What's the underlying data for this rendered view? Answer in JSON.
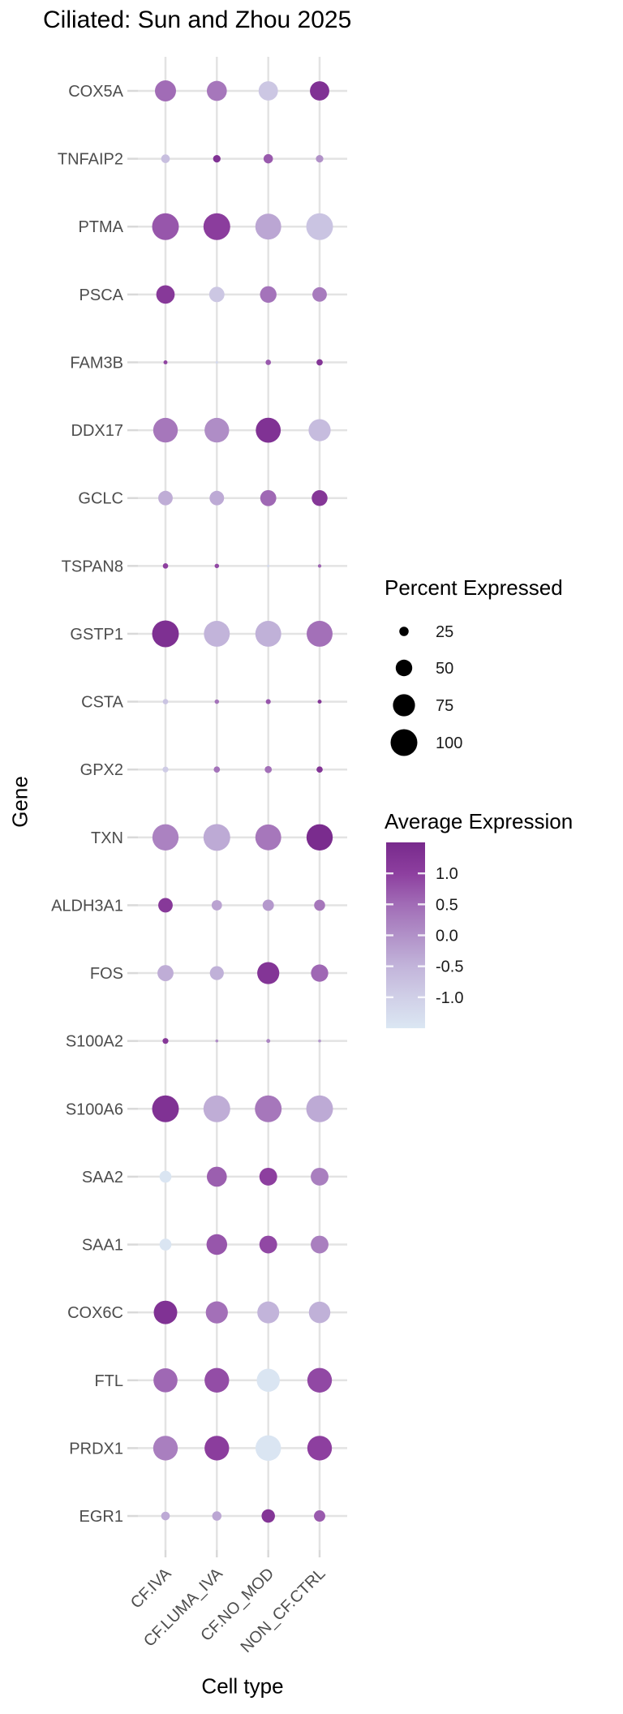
{
  "title": "Ciliated: Sun and Zhou 2025",
  "axes": {
    "x_label": "Cell type",
    "y_label": "Gene"
  },
  "legends": {
    "size": {
      "title": "Percent Expressed",
      "items": [
        "25",
        "50",
        "75",
        "100"
      ],
      "dot_color": "#000000"
    },
    "color": {
      "title": "Average Expression",
      "tick_labels": [
        "1.0",
        "0.5",
        "0.0",
        "-0.5",
        "-1.0"
      ],
      "tick_values": [
        1.0,
        0.5,
        0.0,
        -0.5,
        -1.0
      ],
      "domain": [
        -1.5,
        1.5
      ],
      "gradient_stops": [
        {
          "v": 1.5,
          "c": "#782a8c"
        },
        {
          "v": 1.0,
          "c": "#8d3f9f"
        },
        {
          "v": 0.5,
          "c": "#a16cb6"
        },
        {
          "v": 0.0,
          "c": "#b191c8"
        },
        {
          "v": -0.5,
          "c": "#c2b4da"
        },
        {
          "v": -1.0,
          "c": "#d0cfe7"
        },
        {
          "v": -1.5,
          "c": "#dbe7f3"
        }
      ]
    }
  },
  "style": {
    "grid_color": "#e3e3e3",
    "tick_color": "#d9d9d9",
    "axis_text_color": "#4d4d4d",
    "legend_text_color": "#1a1a1a"
  },
  "chart_data": {
    "type": "scatter",
    "subtype": "dot-plot (size = percent expressed, color = average expression)",
    "title": "Ciliated: Sun and Zhou 2025",
    "xlabel": "Cell type",
    "ylabel": "Gene",
    "x_categories": [
      "CF.IVA",
      "CF.LUMA_IVA",
      "CF.NO_MOD",
      "NON_CF.CTRL"
    ],
    "y_categories": [
      "COX5A",
      "TNFAIP2",
      "PTMA",
      "PSCA",
      "FAM3B",
      "DDX17",
      "GCLC",
      "TSPAN8",
      "GSTP1",
      "CSTA",
      "GPX2",
      "TXN",
      "ALDH3A1",
      "FOS",
      "S100A2",
      "S100A6",
      "SAA2",
      "SAA1",
      "COX6C",
      "FTL",
      "PRDX1",
      "EGR1"
    ],
    "series": [
      {
        "gene": "COX5A",
        "percent_expressed": [
          70,
          65,
          62,
          62
        ],
        "avg_expression": [
          0.5,
          0.35,
          -0.85,
          1.3
        ]
      },
      {
        "gene": "TNFAIP2",
        "percent_expressed": [
          23,
          20,
          25,
          20
        ],
        "avg_expression": [
          -0.7,
          1.3,
          0.7,
          0.0
        ]
      },
      {
        "gene": "PTMA",
        "percent_expressed": [
          100,
          100,
          95,
          100
        ],
        "avg_expression": [
          0.75,
          1.05,
          -0.3,
          -0.8
        ]
      },
      {
        "gene": "PSCA",
        "percent_expressed": [
          58,
          45,
          50,
          42
        ],
        "avg_expression": [
          1.15,
          -0.85,
          0.4,
          0.3
        ]
      },
      {
        "gene": "FAM3B",
        "percent_expressed": [
          12,
          6,
          15,
          17
        ],
        "avg_expression": [
          0.95,
          -1.2,
          0.7,
          1.25
        ]
      },
      {
        "gene": "DDX17",
        "percent_expressed": [
          88,
          88,
          90,
          75
        ],
        "avg_expression": [
          0.35,
          0.05,
          1.3,
          -0.65
        ]
      },
      {
        "gene": "GCLC",
        "percent_expressed": [
          42,
          42,
          48,
          47
        ],
        "avg_expression": [
          -0.4,
          -0.35,
          0.55,
          1.2
        ]
      },
      {
        "gene": "TSPAN8",
        "percent_expressed": [
          15,
          13,
          6,
          11
        ],
        "avg_expression": [
          1.0,
          0.9,
          -1.2,
          0.6
        ]
      },
      {
        "gene": "GSTP1",
        "percent_expressed": [
          100,
          95,
          95,
          95
        ],
        "avg_expression": [
          1.35,
          -0.5,
          -0.45,
          0.45
        ]
      },
      {
        "gene": "CSTA",
        "percent_expressed": [
          15,
          13,
          14,
          12
        ],
        "avg_expression": [
          -0.8,
          0.4,
          0.75,
          1.25
        ]
      },
      {
        "gene": "GPX2",
        "percent_expressed": [
          16,
          17,
          19,
          17
        ],
        "avg_expression": [
          -0.95,
          0.4,
          0.45,
          1.25
        ]
      },
      {
        "gene": "TXN",
        "percent_expressed": [
          97,
          100,
          95,
          97
        ],
        "avg_expression": [
          0.2,
          -0.35,
          0.35,
          1.45
        ]
      },
      {
        "gene": "ALDH3A1",
        "percent_expressed": [
          42,
          28,
          31,
          30
        ],
        "avg_expression": [
          1.15,
          -0.25,
          -0.1,
          0.35
        ]
      },
      {
        "gene": "FOS",
        "percent_expressed": [
          48,
          40,
          75,
          53
        ],
        "avg_expression": [
          -0.4,
          -0.45,
          1.25,
          0.55
        ]
      },
      {
        "gene": "S100A2",
        "percent_expressed": [
          16,
          10,
          12,
          10
        ],
        "avg_expression": [
          1.2,
          0.05,
          0.15,
          -0.1
        ]
      },
      {
        "gene": "S100A6",
        "percent_expressed": [
          100,
          100,
          100,
          100
        ],
        "avg_expression": [
          1.3,
          -0.4,
          0.35,
          -0.35
        ]
      },
      {
        "gene": "SAA2",
        "percent_expressed": [
          33,
          65,
          55,
          55
        ],
        "avg_expression": [
          -1.45,
          0.65,
          1.0,
          0.25
        ]
      },
      {
        "gene": "SAA1",
        "percent_expressed": [
          33,
          68,
          55,
          55
        ],
        "avg_expression": [
          -1.45,
          0.75,
          0.9,
          0.25
        ]
      },
      {
        "gene": "COX6C",
        "percent_expressed": [
          82,
          75,
          74,
          72
        ],
        "avg_expression": [
          1.3,
          0.45,
          -0.5,
          -0.45
        ]
      },
      {
        "gene": "FTL",
        "percent_expressed": [
          85,
          88,
          80,
          88
        ],
        "avg_expression": [
          0.55,
          0.85,
          -1.45,
          0.9
        ]
      },
      {
        "gene": "PRDX1",
        "percent_expressed": [
          88,
          88,
          93,
          88
        ],
        "avg_expression": [
          0.25,
          1.05,
          -1.45,
          1.0
        ]
      },
      {
        "gene": "EGR1",
        "percent_expressed": [
          23,
          25,
          38,
          31
        ],
        "avg_expression": [
          -0.35,
          -0.3,
          1.25,
          0.7
        ]
      }
    ],
    "size_legend": {
      "percent": [
        25,
        50,
        75,
        100
      ]
    },
    "color_legend_range": [
      -1.5,
      1.5
    ],
    "grid": true,
    "legend_position": "right"
  }
}
